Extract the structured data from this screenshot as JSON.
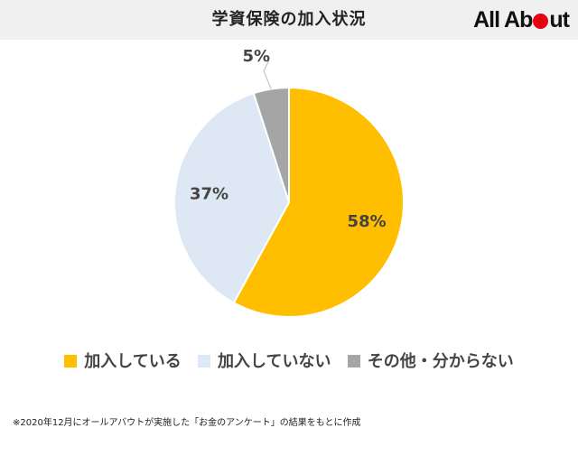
{
  "title": "学資保険の加入状況",
  "logo": {
    "pre": "All Ab",
    "post": "ut"
  },
  "colors": {
    "joined": "#ffbf00",
    "not_joined": "#dde8f4",
    "other": "#a5a5a5",
    "logo_dot": "#e60012"
  },
  "chart_data": {
    "type": "pie",
    "title": "",
    "start_angle_deg": 0,
    "direction": "clockwise",
    "legend_position": "bottom",
    "slices": [
      {
        "label": "加入している",
        "value": 58,
        "display": "58%",
        "color": "#ffbf00"
      },
      {
        "label": "加入していない",
        "value": 37,
        "display": "37%",
        "color": "#dde8f4"
      },
      {
        "label": "その他・分からない",
        "value": 5,
        "display": "5%",
        "color": "#a5a5a5"
      }
    ]
  },
  "note": "※2020年12月にオールアバウトが実施した「お金のアンケート」の結果をもとに作成"
}
